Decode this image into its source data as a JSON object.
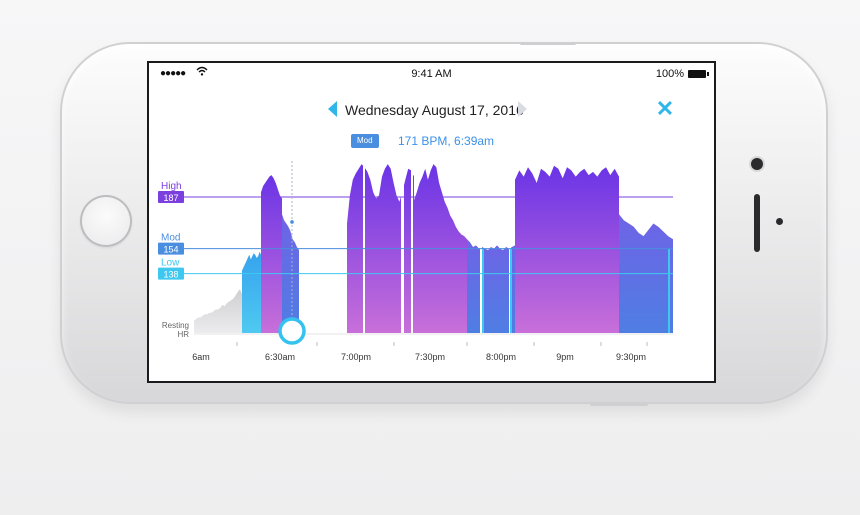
{
  "status_bar": {
    "signal": "●●●●●",
    "wifi_icon": "wifi-icon",
    "time": "9:41 AM",
    "battery": "100%"
  },
  "header": {
    "date": "Wednesday August 17, 2016",
    "prev_icon": "chevron-left-icon",
    "next_icon": "chevron-right-icon",
    "close_icon": "close-icon",
    "close_symbol": "✕"
  },
  "reading": {
    "zone": "Mod",
    "value": "171 BPM, 6:39am"
  },
  "chart_data": {
    "type": "area",
    "thresholds": [
      {
        "label": "High",
        "value": 187,
        "color": "#7b3fe0"
      },
      {
        "label": "Mod",
        "value": 154,
        "color": "#4a8ee0"
      },
      {
        "label": "Low",
        "value": 138,
        "color": "#3fc8ef"
      }
    ],
    "resting_label": [
      "Resting",
      "HR"
    ],
    "x_ticks": [
      "6am",
      "6:30am",
      "7:00pm",
      "7:30pm",
      "8:00pm",
      "9pm",
      "9:30pm"
    ],
    "ylim": [
      100,
      210
    ],
    "selected_index": 1,
    "segments": [
      {
        "zone": "rest",
        "values": [
          108,
          109,
          110,
          110,
          111,
          112,
          112,
          113,
          113,
          114,
          115,
          115,
          116,
          118,
          117,
          119,
          120,
          121,
          122,
          124,
          126,
          128,
          125
        ]
      },
      {
        "zone": "low",
        "values": [
          140,
          142,
          144,
          146,
          148,
          150,
          147,
          149,
          151,
          150,
          148,
          149,
          152,
          150
        ]
      },
      {
        "zone": "high",
        "values": [
          190,
          194,
          196,
          198,
          200,
          201,
          199,
          196,
          192,
          188,
          186
        ]
      },
      {
        "zone": "mod",
        "values": [
          176,
          172,
          170,
          168,
          165,
          160,
          158,
          155,
          153
        ]
      },
      {
        "zone": "high",
        "values": [
          170,
          188,
          198,
          202,
          205,
          208,
          206,
          203,
          198,
          190,
          186,
          188,
          200,
          205,
          208,
          205,
          196,
          188,
          184,
          190,
          198,
          205,
          204,
          200
        ]
      },
      {
        "zone": "high",
        "values": [
          185,
          190,
          196,
          200,
          205,
          198,
          204,
          208,
          206,
          196,
          190,
          184,
          180,
          175,
          172,
          168,
          165,
          163,
          162,
          160
        ]
      },
      {
        "zone": "mod",
        "values": [
          160,
          158,
          155,
          156,
          154,
          155,
          154,
          153,
          155,
          154,
          156,
          154,
          153,
          155,
          154,
          155,
          156
        ]
      },
      {
        "zone": "high",
        "values": [
          198,
          204,
          200,
          206,
          202,
          196,
          205,
          203,
          200,
          207,
          205,
          199,
          206,
          204,
          200,
          203,
          205,
          201,
          203,
          200,
          204,
          206,
          201,
          205,
          200
        ]
      },
      {
        "zone": "mod",
        "values": [
          176,
          172,
          170,
          168,
          164,
          162,
          166,
          170,
          168,
          165,
          162,
          160
        ]
      }
    ]
  }
}
